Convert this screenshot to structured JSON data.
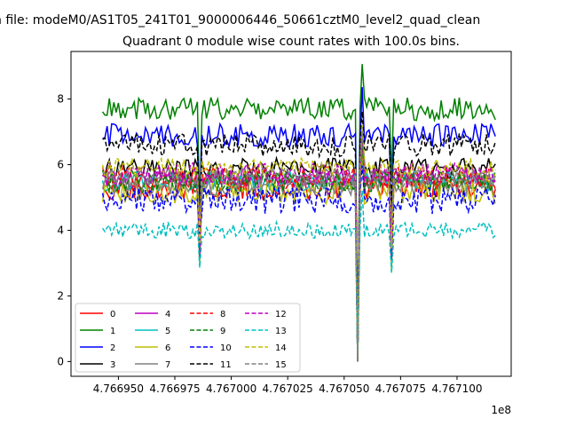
{
  "figure": {
    "suptitle": "n file: modeM0/AS1T05_241T01_9000006446_50661cztM0_level2_quad_clean",
    "title": "Quadrant 0 module wise count rates with 100.0s bins.",
    "x_offset_label": "1e8"
  },
  "chart_data": {
    "type": "line",
    "title": "Quadrant 0 module wise count rates with 100.0s bins.",
    "xlabel": "",
    "ylabel": "",
    "x_scale_factor": "1e8",
    "xlim": [
      476692900,
      476712400
    ],
    "ylim": [
      -0.45,
      9.45
    ],
    "x_start": 476694300,
    "x_end": 476711700,
    "bin_seconds": 100,
    "x_ticks": [
      476695000,
      476697500,
      476700000,
      476702500,
      476705000,
      476707500,
      476710000
    ],
    "x_tick_labels": [
      "4.766950",
      "4.766975",
      "4.767000",
      "4.767025",
      "4.767050",
      "4.767075",
      "4.767100"
    ],
    "y_ticks": [
      0,
      2,
      4,
      6,
      8
    ],
    "y_tick_labels": [
      "0",
      "2",
      "4",
      "6",
      "8"
    ],
    "grid": false,
    "legend_position": "lower-left",
    "legend_columns": 4,
    "dips": [
      {
        "x": 476698600,
        "depth": 0.6
      },
      {
        "x": 476705600,
        "depth": 1.0
      },
      {
        "x": 476707100,
        "depth": 0.4
      }
    ],
    "spike_x": 476705800,
    "series": [
      {
        "name": "0",
        "color": "#ff0000",
        "dash": "solid",
        "mean": 5.3,
        "noise": 0.35
      },
      {
        "name": "1",
        "color": "#008000",
        "dash": "solid",
        "mean": 7.7,
        "noise": 0.35
      },
      {
        "name": "2",
        "color": "#0000ff",
        "dash": "solid",
        "mean": 6.9,
        "noise": 0.35
      },
      {
        "name": "3",
        "color": "#000000",
        "dash": "solid",
        "mean": 5.9,
        "noise": 0.3
      },
      {
        "name": "4",
        "color": "#bf00bf",
        "dash": "solid",
        "mean": 5.6,
        "noise": 0.3
      },
      {
        "name": "5",
        "color": "#00bfbf",
        "dash": "solid",
        "mean": 5.5,
        "noise": 0.3
      },
      {
        "name": "6",
        "color": "#bfbf00",
        "dash": "solid",
        "mean": 5.2,
        "noise": 0.4
      },
      {
        "name": "7",
        "color": "#808080",
        "dash": "solid",
        "mean": 5.4,
        "noise": 0.35
      },
      {
        "name": "8",
        "color": "#ff0000",
        "dash": "dashed",
        "mean": 5.6,
        "noise": 0.35
      },
      {
        "name": "9",
        "color": "#008000",
        "dash": "dashed",
        "mean": 5.5,
        "noise": 0.35
      },
      {
        "name": "10",
        "color": "#0000ff",
        "dash": "dashed",
        "mean": 4.9,
        "noise": 0.4
      },
      {
        "name": "11",
        "color": "#000000",
        "dash": "dashed",
        "mean": 6.6,
        "noise": 0.35
      },
      {
        "name": "12",
        "color": "#bf00bf",
        "dash": "dashed",
        "mean": 5.7,
        "noise": 0.35
      },
      {
        "name": "13",
        "color": "#00bfbf",
        "dash": "dashed",
        "mean": 4.0,
        "noise": 0.25
      },
      {
        "name": "14",
        "color": "#bfbf00",
        "dash": "dashed",
        "mean": 5.9,
        "noise": 0.3
      },
      {
        "name": "15",
        "color": "#808080",
        "dash": "dashed",
        "mean": 5.6,
        "noise": 0.3
      }
    ]
  }
}
